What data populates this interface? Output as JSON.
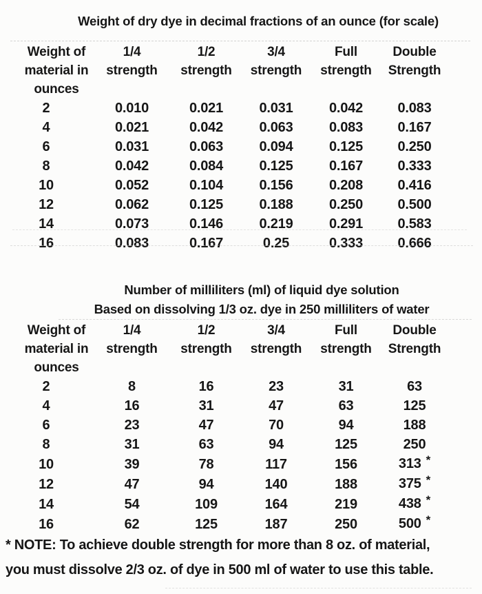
{
  "page": {
    "background": "#fcfcfb",
    "text_color": "#161616"
  },
  "tables": [
    {
      "title": "Weight of dry dye in decimal fractions of an ounce (for scale)",
      "columns": [
        [
          "Weight of",
          "material in",
          "ounces"
        ],
        [
          "1/4",
          "strength"
        ],
        [
          "1/2",
          "strength"
        ],
        [
          "3/4",
          "strength"
        ],
        [
          "Full",
          "strength"
        ],
        [
          "Double",
          "Strength"
        ]
      ],
      "rows": [
        [
          "2",
          "0.010",
          "0.021",
          "0.031",
          "0.042",
          "0.083"
        ],
        [
          "4",
          "0.021",
          "0.042",
          "0.063",
          "0.083",
          "0.167"
        ],
        [
          "6",
          "0.031",
          "0.063",
          "0.094",
          "0.125",
          "0.250"
        ],
        [
          "8",
          "0.042",
          "0.084",
          "0.125",
          "0.167",
          "0.333"
        ],
        [
          "10",
          "0.052",
          "0.104",
          "0.156",
          "0.208",
          "0.416"
        ],
        [
          "12",
          "0.062",
          "0.125",
          "0.188",
          "0.250",
          "0.500"
        ],
        [
          "14",
          "0.073",
          "0.146",
          "0.219",
          "0.291",
          "0.583"
        ],
        [
          "16",
          "0.083",
          "0.167",
          "0.25",
          "0.333",
          "0.666"
        ]
      ]
    },
    {
      "title": "Number of milliliters (ml) of liquid dye solution",
      "subtitle": "Based on dissolving 1/3 oz. dye in 250 milliliters of water",
      "columns": [
        [
          "Weight of",
          "material in",
          "ounces"
        ],
        [
          "1/4",
          "strength"
        ],
        [
          "1/2",
          "strength"
        ],
        [
          "3/4",
          "strength"
        ],
        [
          "Full",
          "strength"
        ],
        [
          "Double",
          "Strength"
        ]
      ],
      "rows": [
        [
          "2",
          "8",
          "16",
          "23",
          "31",
          "63"
        ],
        [
          "4",
          "16",
          "31",
          "47",
          "63",
          "125"
        ],
        [
          "6",
          "23",
          "47",
          "70",
          "94",
          "188"
        ],
        [
          "8",
          "31",
          "63",
          "94",
          "125",
          "250"
        ],
        [
          "10",
          "39",
          "78",
          "117",
          "156",
          "313 *"
        ],
        [
          "12",
          "47",
          "94",
          "140",
          "188",
          "375 *"
        ],
        [
          "14",
          "54",
          "109",
          "164",
          "219",
          "438 *"
        ],
        [
          "16",
          "62",
          "125",
          "187",
          "250",
          "500 *"
        ]
      ]
    }
  ],
  "footnote": {
    "lines": [
      "* NOTE: To achieve double strength for more than 8 oz. of material,",
      "you must dissolve 2/3 oz. of dye in 500 ml of water to use this table."
    ]
  }
}
